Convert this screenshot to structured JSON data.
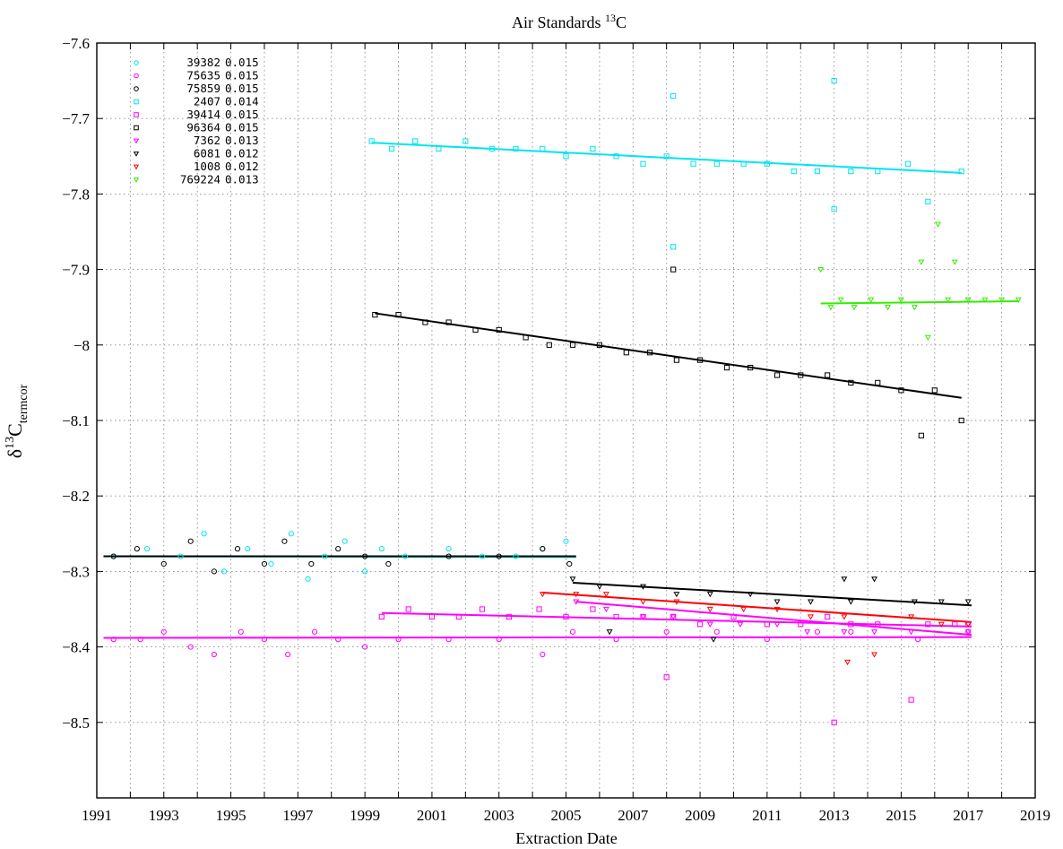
{
  "chart_data": {
    "type": "scatter",
    "title": {
      "prefix": "Air Standards ",
      "sup": "13",
      "suffix": "C"
    },
    "xlabel": "Extraction Date",
    "ylabel": {
      "delta": "δ",
      "sup": "13",
      "main": "C",
      "sub": "termcor"
    },
    "xlim": [
      1991,
      2019
    ],
    "ylim": [
      -8.6,
      -7.6
    ],
    "y_direction": "reversed",
    "grid": true,
    "legend_position": "top-left",
    "x_ticks": [
      "1991",
      "1993",
      "1995",
      "1997",
      "1999",
      "2001",
      "2003",
      "2005",
      "2007",
      "2009",
      "2011",
      "2013",
      "2015",
      "2017",
      "2019"
    ],
    "y_ticks": [
      "−7.6",
      "−7.7",
      "−7.8",
      "−7.9",
      "−8",
      "−8.1",
      "−8.2",
      "−8.3",
      "−8.4",
      "−8.5"
    ],
    "series": [
      {
        "name": "39382",
        "value": "0.015",
        "marker": "circle",
        "color": "#00e5ee",
        "points": [
          [
            1991.5,
            -8.28
          ],
          [
            1992.5,
            -8.27
          ],
          [
            1993.5,
            -8.28
          ],
          [
            1994.2,
            -8.25
          ],
          [
            1994.8,
            -8.3
          ],
          [
            1995.5,
            -8.27
          ],
          [
            1996.2,
            -8.29
          ],
          [
            1996.8,
            -8.25
          ],
          [
            1997.3,
            -8.31
          ],
          [
            1997.8,
            -8.28
          ],
          [
            1998.4,
            -8.26
          ],
          [
            1999.0,
            -8.3
          ],
          [
            1999.5,
            -8.27
          ],
          [
            2000.2,
            -8.28
          ],
          [
            2001.5,
            -8.27
          ],
          [
            2002.5,
            -8.28
          ],
          [
            2003.5,
            -8.28
          ],
          [
            2004.3,
            -8.27
          ],
          [
            2005.0,
            -8.26
          ]
        ],
        "trend": [
          [
            1991.2,
            -8.28
          ],
          [
            2005.3,
            -8.281
          ]
        ]
      },
      {
        "name": "75635",
        "value": "0.015",
        "marker": "circle",
        "color": "#ff00ff",
        "points": [
          [
            1991.5,
            -8.39
          ],
          [
            1992.3,
            -8.39
          ],
          [
            1993.0,
            -8.38
          ],
          [
            1993.8,
            -8.4
          ],
          [
            1994.5,
            -8.41
          ],
          [
            1995.3,
            -8.38
          ],
          [
            1996.0,
            -8.39
          ],
          [
            1996.7,
            -8.41
          ],
          [
            1997.5,
            -8.38
          ],
          [
            1998.2,
            -8.39
          ],
          [
            1999.0,
            -8.4
          ],
          [
            2000.0,
            -8.39
          ],
          [
            2001.5,
            -8.39
          ],
          [
            2003.0,
            -8.39
          ],
          [
            2004.3,
            -8.41
          ],
          [
            2005.2,
            -8.38
          ],
          [
            2006.5,
            -8.39
          ],
          [
            2008.0,
            -8.38
          ],
          [
            2009.5,
            -8.38
          ],
          [
            2011.0,
            -8.39
          ],
          [
            2012.5,
            -8.38
          ],
          [
            2013.5,
            -8.38
          ],
          [
            2015.5,
            -8.39
          ],
          [
            2017.0,
            -8.38
          ]
        ],
        "trend": [
          [
            1991.2,
            -8.388
          ],
          [
            2017.1,
            -8.387
          ]
        ]
      },
      {
        "name": "75859",
        "value": "0.015",
        "marker": "circle",
        "color": "#000000",
        "points": [
          [
            1991.5,
            -8.28
          ],
          [
            1992.2,
            -8.27
          ],
          [
            1993.0,
            -8.29
          ],
          [
            1993.8,
            -8.26
          ],
          [
            1994.5,
            -8.3
          ],
          [
            1995.2,
            -8.27
          ],
          [
            1996.0,
            -8.29
          ],
          [
            1996.6,
            -8.26
          ],
          [
            1997.4,
            -8.29
          ],
          [
            1998.2,
            -8.27
          ],
          [
            1999.0,
            -8.28
          ],
          [
            1999.7,
            -8.29
          ],
          [
            2001.5,
            -8.28
          ],
          [
            2003.0,
            -8.28
          ],
          [
            2004.3,
            -8.27
          ],
          [
            2005.1,
            -8.29
          ]
        ],
        "trend": [
          [
            1991.2,
            -8.28
          ],
          [
            2005.3,
            -8.28
          ]
        ]
      },
      {
        "name": "2407",
        "value": "0.014",
        "marker": "square",
        "color": "#00e5ee",
        "points": [
          [
            1999.2,
            -7.73
          ],
          [
            1999.8,
            -7.74
          ],
          [
            2000.5,
            -7.73
          ],
          [
            2001.2,
            -7.74
          ],
          [
            2002.0,
            -7.73
          ],
          [
            2002.8,
            -7.74
          ],
          [
            2003.5,
            -7.74
          ],
          [
            2004.3,
            -7.74
          ],
          [
            2005.0,
            -7.75
          ],
          [
            2005.8,
            -7.74
          ],
          [
            2006.5,
            -7.75
          ],
          [
            2007.3,
            -7.76
          ],
          [
            2008.0,
            -7.75
          ],
          [
            2008.2,
            -7.67
          ],
          [
            2008.2,
            -7.87
          ],
          [
            2008.8,
            -7.76
          ],
          [
            2009.5,
            -7.76
          ],
          [
            2010.3,
            -7.76
          ],
          [
            2011.0,
            -7.76
          ],
          [
            2011.8,
            -7.77
          ],
          [
            2012.5,
            -7.77
          ],
          [
            2013.0,
            -7.65
          ],
          [
            2013.0,
            -7.82
          ],
          [
            2013.5,
            -7.77
          ],
          [
            2014.3,
            -7.77
          ],
          [
            2015.2,
            -7.76
          ],
          [
            2015.8,
            -7.81
          ],
          [
            2016.8,
            -7.77
          ]
        ],
        "trend": [
          [
            1999.2,
            -7.732
          ],
          [
            2016.8,
            -7.772
          ]
        ]
      },
      {
        "name": "39414",
        "value": "0.015",
        "marker": "square",
        "color": "#ff00ff",
        "points": [
          [
            1999.5,
            -8.36
          ],
          [
            2000.3,
            -8.35
          ],
          [
            2001.0,
            -8.36
          ],
          [
            2001.8,
            -8.36
          ],
          [
            2002.5,
            -8.35
          ],
          [
            2003.3,
            -8.36
          ],
          [
            2004.2,
            -8.35
          ],
          [
            2005.0,
            -8.36
          ],
          [
            2005.8,
            -8.35
          ],
          [
            2006.5,
            -8.36
          ],
          [
            2007.3,
            -8.36
          ],
          [
            2008.0,
            -8.44
          ],
          [
            2008.2,
            -8.36
          ],
          [
            2009.0,
            -8.37
          ],
          [
            2010.0,
            -8.36
          ],
          [
            2011.0,
            -8.37
          ],
          [
            2012.0,
            -8.37
          ],
          [
            2012.8,
            -8.36
          ],
          [
            2013.0,
            -8.5
          ],
          [
            2013.5,
            -8.37
          ],
          [
            2014.3,
            -8.37
          ],
          [
            2015.3,
            -8.47
          ],
          [
            2015.8,
            -8.37
          ],
          [
            2016.6,
            -8.37
          ],
          [
            2017.0,
            -8.37
          ]
        ],
        "trend": [
          [
            1999.5,
            -8.355
          ],
          [
            2017.1,
            -8.373
          ]
        ]
      },
      {
        "name": "96364",
        "value": "0.015",
        "marker": "square",
        "color": "#000000",
        "points": [
          [
            1999.3,
            -7.96
          ],
          [
            2000.0,
            -7.96
          ],
          [
            2000.8,
            -7.97
          ],
          [
            2001.5,
            -7.97
          ],
          [
            2002.3,
            -7.98
          ],
          [
            2003.0,
            -7.98
          ],
          [
            2003.8,
            -7.99
          ],
          [
            2004.5,
            -8.0
          ],
          [
            2005.2,
            -8.0
          ],
          [
            2006.0,
            -8.0
          ],
          [
            2006.8,
            -8.01
          ],
          [
            2007.5,
            -8.01
          ],
          [
            2008.2,
            -7.9
          ],
          [
            2008.3,
            -8.02
          ],
          [
            2009.0,
            -8.02
          ],
          [
            2009.8,
            -8.03
          ],
          [
            2010.5,
            -8.03
          ],
          [
            2011.3,
            -8.04
          ],
          [
            2012.0,
            -8.04
          ],
          [
            2012.8,
            -8.04
          ],
          [
            2013.5,
            -8.05
          ],
          [
            2014.3,
            -8.05
          ],
          [
            2015.0,
            -8.06
          ],
          [
            2015.6,
            -8.12
          ],
          [
            2016.0,
            -8.06
          ],
          [
            2016.8,
            -8.1
          ]
        ],
        "trend": [
          [
            1999.3,
            -7.958
          ],
          [
            2016.8,
            -8.07
          ]
        ]
      },
      {
        "name": "7362",
        "value": "0.013",
        "marker": "triangle",
        "color": "#ff00ff",
        "points": [
          [
            2005.3,
            -8.34
          ],
          [
            2006.2,
            -8.35
          ],
          [
            2007.3,
            -8.36
          ],
          [
            2008.2,
            -8.36
          ],
          [
            2009.3,
            -8.37
          ],
          [
            2010.2,
            -8.37
          ],
          [
            2011.3,
            -8.37
          ],
          [
            2012.2,
            -8.38
          ],
          [
            2013.3,
            -8.38
          ],
          [
            2014.2,
            -8.38
          ],
          [
            2015.3,
            -8.38
          ],
          [
            2017.0,
            -8.38
          ]
        ],
        "trend": [
          [
            2005.3,
            -8.34
          ],
          [
            2017.1,
            -8.384
          ]
        ]
      },
      {
        "name": "6081",
        "value": "0.012",
        "marker": "triangle",
        "color": "#000000",
        "points": [
          [
            2005.2,
            -8.31
          ],
          [
            2006.0,
            -8.32
          ],
          [
            2006.3,
            -8.38
          ],
          [
            2007.3,
            -8.32
          ],
          [
            2008.3,
            -8.33
          ],
          [
            2009.3,
            -8.33
          ],
          [
            2009.4,
            -8.39
          ],
          [
            2010.5,
            -8.33
          ],
          [
            2011.3,
            -8.34
          ],
          [
            2012.3,
            -8.34
          ],
          [
            2013.3,
            -8.31
          ],
          [
            2013.5,
            -8.34
          ],
          [
            2014.2,
            -8.31
          ],
          [
            2015.4,
            -8.34
          ],
          [
            2016.2,
            -8.34
          ],
          [
            2017.0,
            -8.34
          ]
        ],
        "trend": [
          [
            2005.2,
            -8.315
          ],
          [
            2017.1,
            -8.345
          ]
        ]
      },
      {
        "name": "1008",
        "value": "0.012",
        "marker": "triangle",
        "color": "#ff0000",
        "points": [
          [
            2004.3,
            -8.33
          ],
          [
            2005.3,
            -8.33
          ],
          [
            2006.2,
            -8.33
          ],
          [
            2007.3,
            -8.34
          ],
          [
            2008.3,
            -8.34
          ],
          [
            2009.3,
            -8.35
          ],
          [
            2010.3,
            -8.35
          ],
          [
            2011.3,
            -8.35
          ],
          [
            2012.3,
            -8.36
          ],
          [
            2013.3,
            -8.36
          ],
          [
            2013.4,
            -8.42
          ],
          [
            2014.2,
            -8.41
          ],
          [
            2015.3,
            -8.36
          ],
          [
            2016.2,
            -8.37
          ],
          [
            2017.0,
            -8.37
          ]
        ],
        "trend": [
          [
            2004.3,
            -8.328
          ],
          [
            2017.1,
            -8.367
          ]
        ]
      },
      {
        "name": "769224",
        "value": "0.013",
        "marker": "triangle",
        "color": "#33ee00",
        "points": [
          [
            2012.6,
            -7.9
          ],
          [
            2012.9,
            -7.95
          ],
          [
            2013.2,
            -7.94
          ],
          [
            2013.6,
            -7.95
          ],
          [
            2014.1,
            -7.94
          ],
          [
            2014.6,
            -7.95
          ],
          [
            2015.0,
            -7.94
          ],
          [
            2015.4,
            -7.95
          ],
          [
            2015.6,
            -7.89
          ],
          [
            2015.8,
            -7.99
          ],
          [
            2016.1,
            -7.84
          ],
          [
            2016.4,
            -7.94
          ],
          [
            2016.6,
            -7.89
          ],
          [
            2017.0,
            -7.94
          ],
          [
            2017.5,
            -7.94
          ],
          [
            2018.0,
            -7.94
          ],
          [
            2018.5,
            -7.94
          ]
        ],
        "trend": [
          [
            2012.6,
            -7.945
          ],
          [
            2018.5,
            -7.942
          ]
        ]
      }
    ]
  }
}
